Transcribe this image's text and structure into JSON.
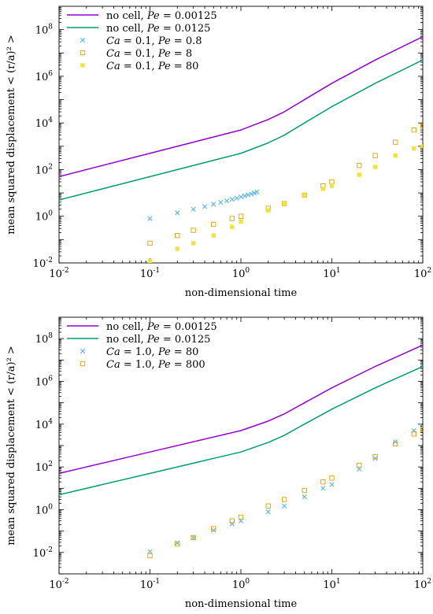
{
  "chart_data": [
    {
      "type": "scatter",
      "xlabel": "non-dimensional time",
      "ylabel": "mean squared displacement < (r/a)² >",
      "xscale": "log",
      "yscale": "log",
      "xlim": [
        0.01,
        100
      ],
      "ylim": [
        0.01,
        1000000000
      ],
      "xticks": [
        {
          "value": 0.01,
          "exp": "-2"
        },
        {
          "value": 0.1,
          "exp": "-1"
        },
        {
          "value": 1,
          "exp": "0"
        },
        {
          "value": 10,
          "exp": "1"
        },
        {
          "value": 100,
          "exp": "2"
        }
      ],
      "yticks": [
        {
          "value": 0.01,
          "exp": "-2"
        },
        {
          "value": 1,
          "exp": "0"
        },
        {
          "value": 100,
          "exp": "2"
        },
        {
          "value": 10000,
          "exp": "4"
        },
        {
          "value": 1000000,
          "exp": "6"
        },
        {
          "value": 100000000,
          "exp": "8"
        }
      ],
      "legend_position": "top-left",
      "series": [
        {
          "name": "no cell, Pe = 0.00125",
          "kind": "line",
          "color": "#9400d3",
          "x": [
            0.01,
            0.1,
            1,
            2,
            3,
            5,
            10,
            30,
            100
          ],
          "y": [
            50,
            500,
            5000,
            14000,
            30000,
            100000,
            500000,
            5000000,
            50000000
          ]
        },
        {
          "name": "no cell, Pe = 0.0125",
          "kind": "line",
          "color": "#009e73",
          "x": [
            0.01,
            0.1,
            1,
            2,
            3,
            5,
            10,
            30,
            100
          ],
          "y": [
            5,
            50,
            500,
            1400,
            3000,
            10000,
            50000,
            500000,
            5000000
          ]
        },
        {
          "name": "Ca = 0.1, Pe = 0.8",
          "kind": "marker",
          "marker": "x",
          "color": "#56b4e9",
          "x": [
            0.1,
            0.2,
            0.3,
            0.4,
            0.5,
            0.6,
            0.7,
            0.8,
            0.9,
            1.0,
            1.1,
            1.2,
            1.3,
            1.4,
            1.5
          ],
          "y": [
            0.8,
            1.4,
            2.0,
            2.6,
            3.3,
            3.9,
            4.6,
            5.3,
            6.0,
            6.8,
            7.5,
            8.3,
            9.0,
            9.8,
            11
          ]
        },
        {
          "name": "Ca = 0.1, Pe = 8",
          "kind": "marker",
          "marker": "open-square",
          "color": "#e69f00",
          "x": [
            0.1,
            0.2,
            0.3,
            0.5,
            0.8,
            1,
            2,
            3,
            5,
            8,
            10,
            20,
            30,
            50,
            80,
            100
          ],
          "y": [
            0.07,
            0.15,
            0.25,
            0.45,
            0.8,
            1.0,
            2.2,
            3.5,
            8,
            20,
            30,
            150,
            400,
            1500,
            5000,
            7500
          ]
        },
        {
          "name": "Ca = 0.1, Pe = 80",
          "kind": "marker",
          "marker": "filled-square",
          "color": "#f0e442",
          "x": [
            0.1,
            0.2,
            0.3,
            0.5,
            0.8,
            1,
            2,
            3,
            5,
            8,
            10,
            20,
            30,
            50,
            80,
            100
          ],
          "y": [
            0.012,
            0.04,
            0.07,
            0.15,
            0.35,
            0.6,
            1.8,
            3.5,
            8,
            15,
            20,
            60,
            130,
            400,
            800,
            1000
          ]
        }
      ]
    },
    {
      "type": "scatter",
      "xlabel": "non-dimensional time",
      "ylabel": "mean squared displacement < (r/a)² >",
      "xscale": "log",
      "yscale": "log",
      "xlim": [
        0.01,
        100
      ],
      "ylim": [
        0.001,
        1000000000
      ],
      "xticks": [
        {
          "value": 0.01,
          "exp": "-2"
        },
        {
          "value": 0.1,
          "exp": "-1"
        },
        {
          "value": 1,
          "exp": "0"
        },
        {
          "value": 10,
          "exp": "1"
        },
        {
          "value": 100,
          "exp": "2"
        }
      ],
      "yticks": [
        {
          "value": 0.01,
          "exp": "-2"
        },
        {
          "value": 1,
          "exp": "0"
        },
        {
          "value": 100,
          "exp": "2"
        },
        {
          "value": 10000,
          "exp": "4"
        },
        {
          "value": 1000000,
          "exp": "6"
        },
        {
          "value": 100000000,
          "exp": "8"
        }
      ],
      "legend_position": "top-left",
      "series": [
        {
          "name": "no cell, Pe = 0.00125",
          "kind": "line",
          "color": "#9400d3",
          "x": [
            0.01,
            0.1,
            1,
            2,
            3,
            5,
            10,
            30,
            100
          ],
          "y": [
            50,
            500,
            5000,
            14000,
            30000,
            100000,
            500000,
            5000000,
            50000000
          ]
        },
        {
          "name": "no cell, Pe = 0.0125",
          "kind": "line",
          "color": "#009e73",
          "x": [
            0.01,
            0.1,
            1,
            2,
            3,
            5,
            10,
            30,
            100
          ],
          "y": [
            5,
            50,
            500,
            1400,
            3000,
            10000,
            50000,
            500000,
            5000000
          ]
        },
        {
          "name": "Ca = 1.0, Pe = 80",
          "kind": "marker",
          "marker": "x",
          "color": "#56b4e9",
          "x": [
            0.1,
            0.2,
            0.3,
            0.5,
            0.8,
            1,
            2,
            3,
            5,
            8,
            10,
            20,
            30,
            50,
            80,
            100
          ],
          "y": [
            0.011,
            0.028,
            0.05,
            0.11,
            0.22,
            0.3,
            0.8,
            1.5,
            4,
            10,
            15,
            80,
            250,
            1500,
            5000,
            8000
          ]
        },
        {
          "name": "Ca = 1.0, Pe = 800",
          "kind": "marker",
          "marker": "open-square",
          "color": "#e69f00",
          "x": [
            0.1,
            0.2,
            0.3,
            0.5,
            0.8,
            1,
            2,
            3,
            5,
            8,
            10,
            20,
            30,
            50,
            80,
            100
          ],
          "y": [
            0.007,
            0.025,
            0.05,
            0.13,
            0.3,
            0.45,
            1.5,
            3,
            8,
            20,
            30,
            120,
            300,
            1200,
            3500,
            5500
          ]
        }
      ]
    }
  ]
}
